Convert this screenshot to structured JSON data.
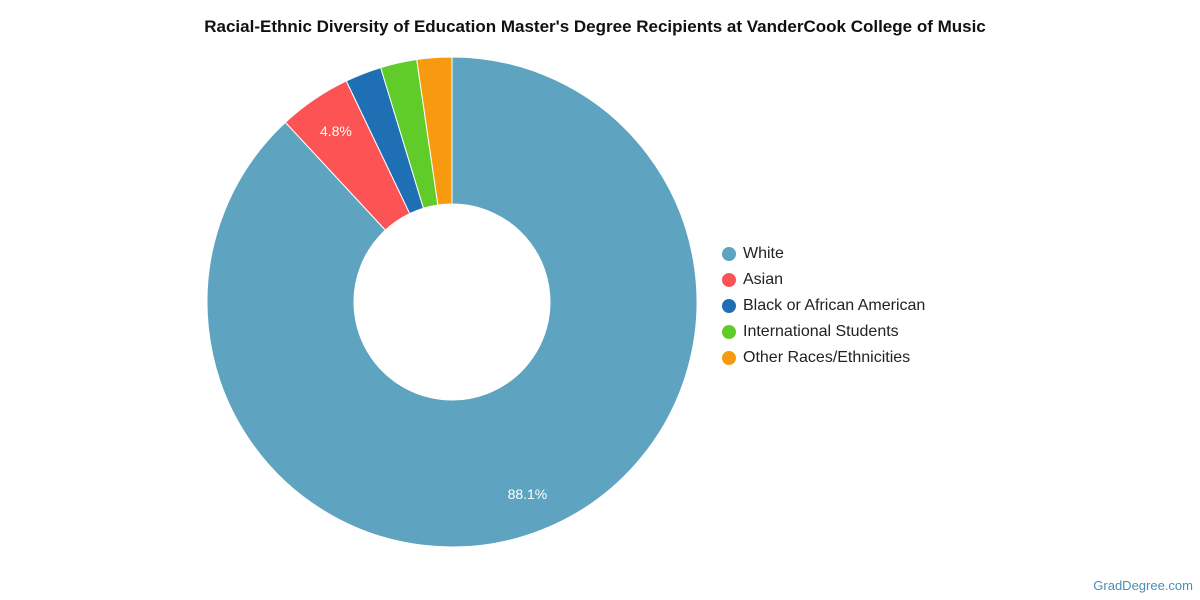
{
  "chart_data": {
    "type": "pie",
    "title": "Racial-Ethnic Diversity of Education Master's Degree Recipients at VanderCook College of Music",
    "hole": true,
    "legend_position": "right",
    "series": [
      {
        "name": "White",
        "value": 88.1,
        "color": "#5ea3c0",
        "label": "88.1%"
      },
      {
        "name": "Asian",
        "value": 4.8,
        "color": "#fc5454",
        "label": "4.8%"
      },
      {
        "name": "Black or African American",
        "value": 2.4,
        "color": "#1f6fb5",
        "label": ""
      },
      {
        "name": "International Students",
        "value": 2.4,
        "color": "#5fcc29",
        "label": ""
      },
      {
        "name": "Other Races/Ethnicities",
        "value": 2.3,
        "color": "#f79a10",
        "label": ""
      }
    ]
  },
  "watermark": "GradDegree.com"
}
